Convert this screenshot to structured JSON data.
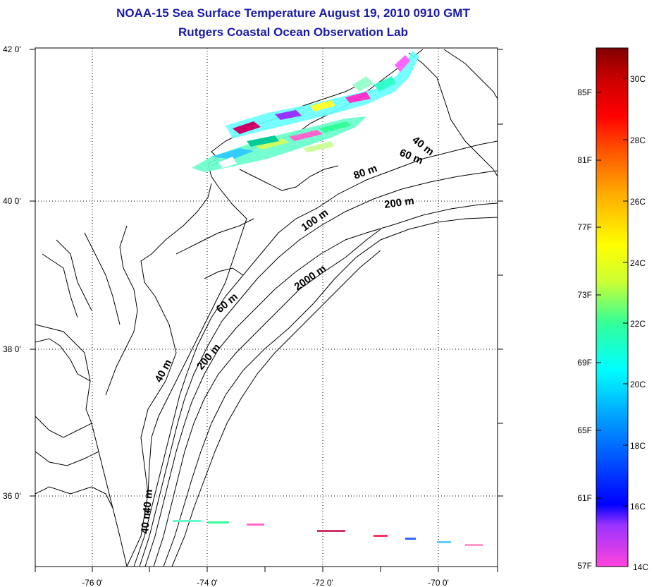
{
  "title_line1": "NOAA-15 Sea Surface Temperature August 19, 2010 0910 GMT",
  "title_line2": "Rutgers Coastal Ocean Observation Lab",
  "lat_labels": [
    "42 0'",
    "40 0'",
    "38 0'",
    "36 0'"
  ],
  "lon_labels": [
    "-76 0'",
    "-74 0'",
    "-72 0'",
    "-70 0'"
  ],
  "contour_labels": {
    "ne_40": "40 m",
    "ne_60": "60 m",
    "ne_80": "80 m",
    "ne_200": "200 m",
    "ne_100": "100 m",
    "mid_2000": "2000 m",
    "mid_60": "60 m",
    "mid_40": "40 m",
    "mid_200": "200 m",
    "s_40a": "40 m",
    "s_40b": "40 m"
  },
  "colorbar": {
    "fahrenheit": [
      "85F",
      "81F",
      "77F",
      "73F",
      "69F",
      "65F",
      "61F",
      "57F"
    ],
    "celsius": [
      "30C",
      "28C",
      "26C",
      "24C",
      "22C",
      "20C",
      "18C",
      "16C",
      "14C"
    ],
    "colors": [
      "#ff44dd",
      "#9933ff",
      "#0000ff",
      "#0099ff",
      "#00ffff",
      "#33ff99",
      "#ccff33",
      "#ffff00",
      "#ffaa00",
      "#ff5500",
      "#ff0000",
      "#cc0000",
      "#800000"
    ]
  }
}
